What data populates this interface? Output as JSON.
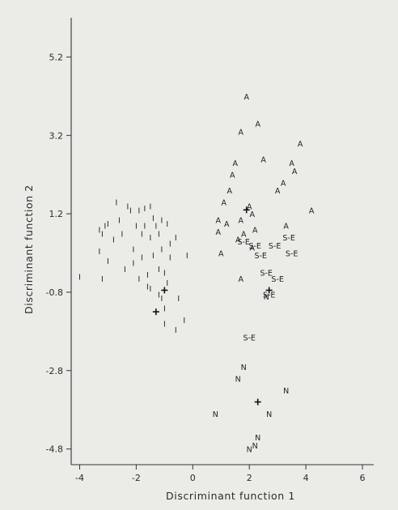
{
  "chart_data": {
    "type": "scatter",
    "title": "",
    "xlabel": "Discriminant function 1",
    "ylabel": "Discriminant function 2",
    "xlim": [
      -4.3,
      6.4
    ],
    "ylim": [
      -5.2,
      6.2
    ],
    "xticks": [
      -4,
      -2,
      0,
      2,
      4,
      6
    ],
    "xtick_labels": [
      "-4",
      "-2",
      "0",
      "2",
      "4",
      "6"
    ],
    "yticks": [
      5.2,
      3.2,
      1.2,
      -0.8,
      -2.8,
      -4.8
    ],
    "ytick_labels": [
      "5.2",
      "3.2",
      "1.2",
      "-0.8",
      "-2.8",
      "-4.8"
    ],
    "grid": false,
    "legend": "none",
    "marker_labels": [
      "I",
      "A",
      "S-E",
      "N"
    ],
    "centroid_symbol": "+",
    "series": [
      {
        "label": "I",
        "points": [
          [
            -4.0,
            -0.4
          ],
          [
            -3.3,
            0.8
          ],
          [
            -3.3,
            0.25
          ],
          [
            -3.2,
            -0.45
          ],
          [
            -3.2,
            0.7
          ],
          [
            -3.1,
            0.9
          ],
          [
            -3.0,
            0.95
          ],
          [
            -3.0,
            0.0
          ],
          [
            -2.8,
            0.55
          ],
          [
            -2.7,
            1.5
          ],
          [
            -2.6,
            1.05
          ],
          [
            -2.5,
            0.7
          ],
          [
            -2.4,
            -0.2
          ],
          [
            -2.3,
            1.4
          ],
          [
            -2.2,
            1.3
          ],
          [
            -2.1,
            0.3
          ],
          [
            -2.1,
            -0.05
          ],
          [
            -2.0,
            0.9
          ],
          [
            -1.9,
            1.3
          ],
          [
            -1.9,
            -0.45
          ],
          [
            -1.8,
            0.7
          ],
          [
            -1.8,
            0.1
          ],
          [
            -1.7,
            1.35
          ],
          [
            -1.7,
            0.9
          ],
          [
            -1.6,
            -0.35
          ],
          [
            -1.6,
            -0.65
          ],
          [
            -1.5,
            0.6
          ],
          [
            -1.5,
            -0.7
          ],
          [
            -1.5,
            1.4
          ],
          [
            -1.4,
            0.15
          ],
          [
            -1.4,
            1.1
          ],
          [
            -1.3,
            0.9
          ],
          [
            -1.2,
            0.7
          ],
          [
            -1.2,
            -0.2
          ],
          [
            -1.1,
            1.05
          ],
          [
            -1.1,
            -0.95
          ],
          [
            -1.1,
            0.3
          ],
          [
            -1.0,
            -0.3
          ],
          [
            -1.0,
            -1.2
          ],
          [
            -1.0,
            -1.6
          ],
          [
            -0.9,
            0.95
          ],
          [
            -0.9,
            -0.55
          ],
          [
            -0.8,
            0.45
          ],
          [
            -0.8,
            0.1
          ],
          [
            -0.6,
            0.6
          ],
          [
            -0.6,
            -1.75
          ],
          [
            -0.5,
            -0.95
          ],
          [
            -0.3,
            -1.5
          ],
          [
            -0.2,
            0.15
          ],
          [
            -1.2,
            -0.85
          ]
        ]
      },
      {
        "label": "A",
        "points": [
          [
            0.9,
            0.75
          ],
          [
            0.9,
            1.05
          ],
          [
            1.0,
            0.2
          ],
          [
            1.1,
            1.5
          ],
          [
            1.3,
            1.8
          ],
          [
            1.4,
            2.2
          ],
          [
            1.5,
            2.5
          ],
          [
            1.7,
            3.3
          ],
          [
            1.8,
            0.7
          ],
          [
            1.9,
            4.2
          ],
          [
            2.0,
            1.4
          ],
          [
            2.1,
            1.2
          ],
          [
            2.2,
            0.8
          ],
          [
            2.3,
            3.5
          ],
          [
            2.5,
            2.6
          ],
          [
            3.0,
            1.8
          ],
          [
            3.2,
            2.0
          ],
          [
            3.3,
            0.9
          ],
          [
            3.5,
            2.5
          ],
          [
            3.6,
            2.3
          ],
          [
            3.8,
            3.0
          ],
          [
            4.2,
            1.3
          ],
          [
            2.1,
            0.35
          ],
          [
            1.7,
            -0.45
          ],
          [
            1.2,
            0.95
          ],
          [
            1.7,
            1.05
          ],
          [
            1.6,
            0.55
          ]
        ]
      },
      {
        "label": "S-E",
        "points": [
          [
            1.8,
            0.5
          ],
          [
            2.2,
            0.4
          ],
          [
            2.4,
            0.15
          ],
          [
            2.9,
            0.4
          ],
          [
            3.4,
            0.6
          ],
          [
            3.5,
            0.2
          ],
          [
            2.6,
            -0.3
          ],
          [
            3.0,
            -0.45
          ],
          [
            2.7,
            -0.85
          ],
          [
            2.0,
            -1.95
          ]
        ]
      },
      {
        "label": "N",
        "points": [
          [
            0.8,
            -3.9
          ],
          [
            1.6,
            -3.0
          ],
          [
            1.8,
            -2.7
          ],
          [
            2.6,
            -0.9
          ],
          [
            2.7,
            -3.9
          ],
          [
            3.3,
            -3.3
          ],
          [
            2.0,
            -4.8
          ],
          [
            2.2,
            -4.7
          ],
          [
            2.3,
            -4.5
          ]
        ]
      }
    ],
    "centroids": [
      [
        -1.0,
        -0.75
      ],
      [
        -1.3,
        -1.3
      ],
      [
        2.3,
        -3.6
      ],
      [
        2.7,
        -0.75
      ],
      [
        1.9,
        1.3
      ]
    ]
  }
}
